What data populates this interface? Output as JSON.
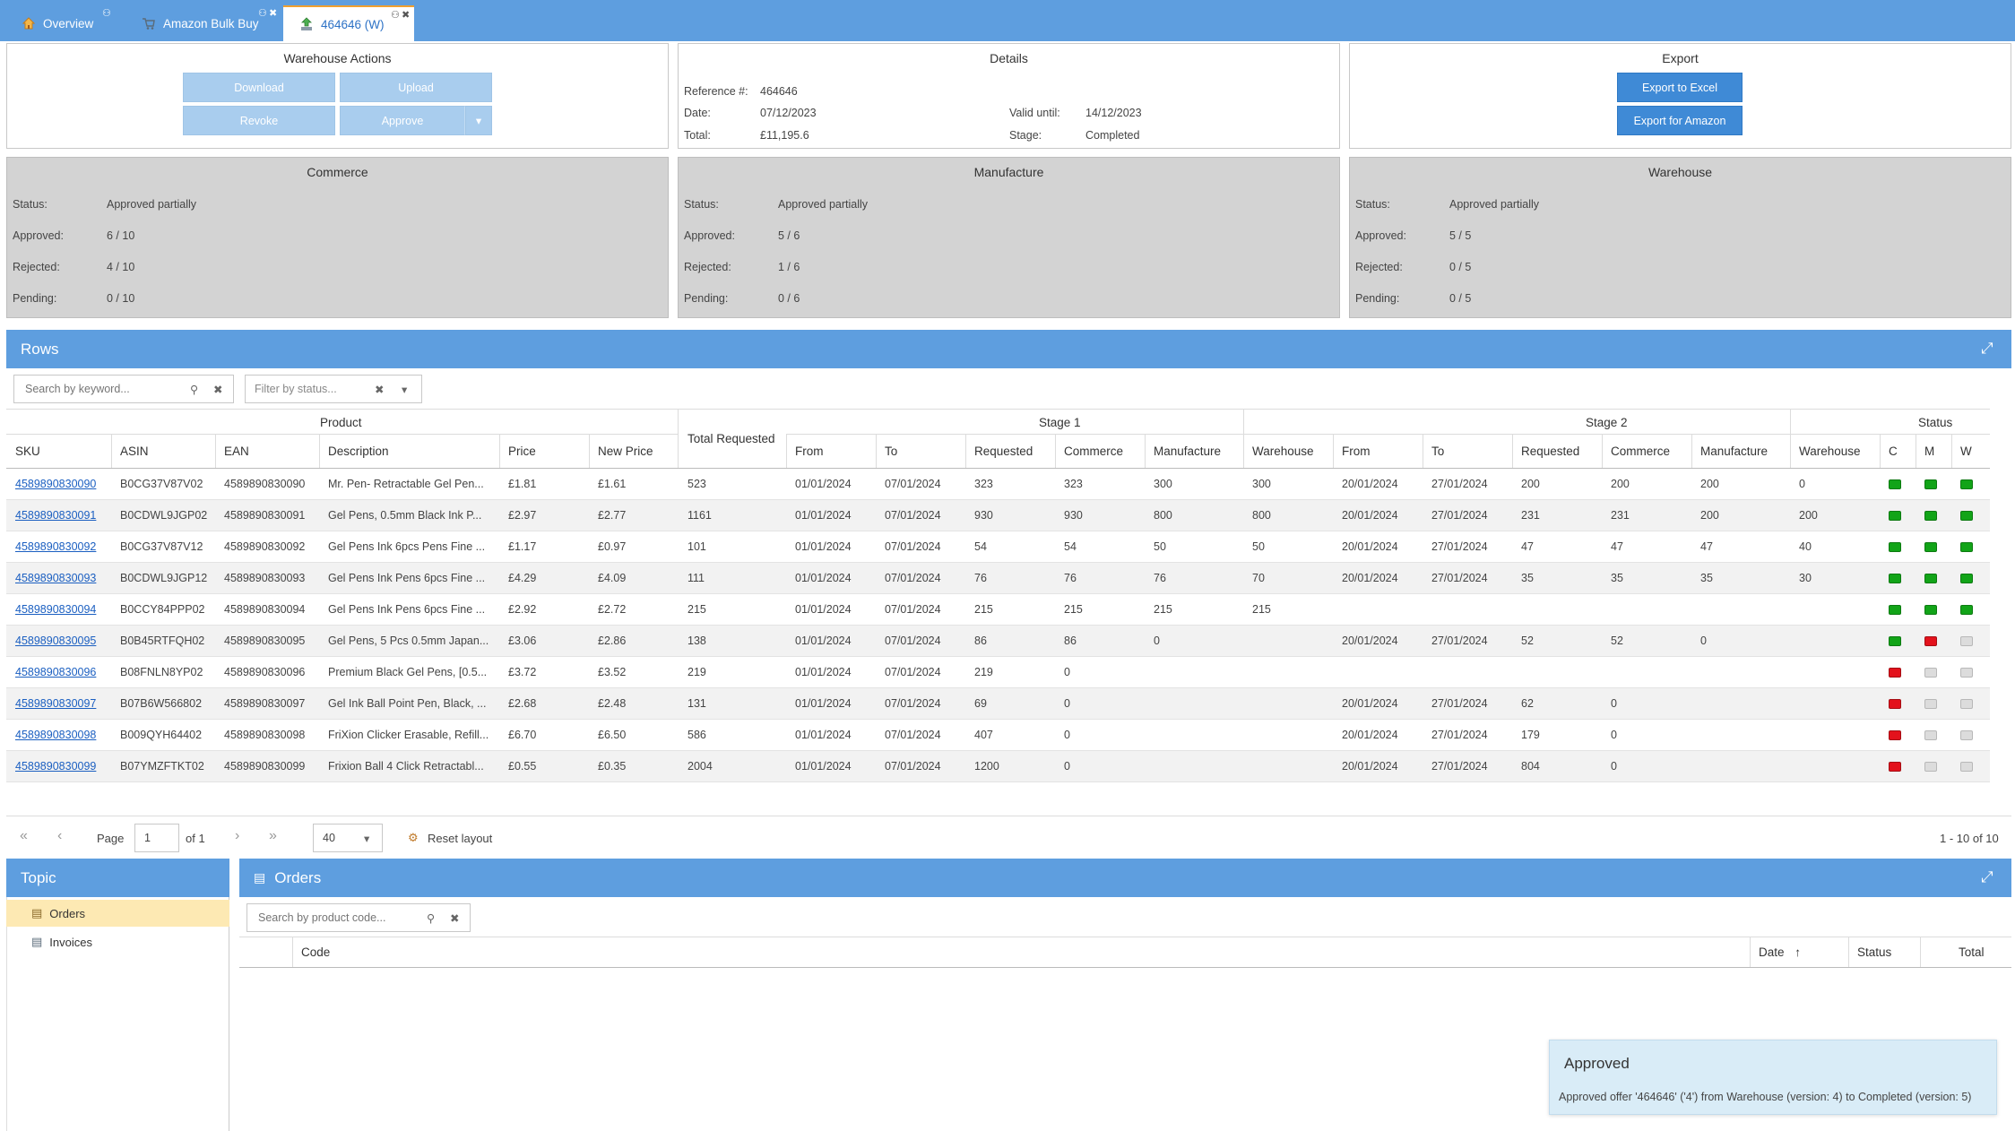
{
  "tabs": [
    {
      "label": "Overview",
      "icon": "home-icon"
    },
    {
      "label": "Amazon Bulk Buy",
      "icon": "cart-icon"
    },
    {
      "label": "464646 (W)",
      "icon": "upload-icon"
    }
  ],
  "warehouse_actions": {
    "title": "Warehouse Actions",
    "download": "Download",
    "upload": "Upload",
    "revoke": "Revoke",
    "approve": "Approve"
  },
  "details": {
    "title": "Details",
    "reference_label": "Reference #:",
    "reference": "464646",
    "date_label": "Date:",
    "date": "07/12/2023",
    "total_label": "Total:",
    "total": "£11,195.6",
    "valid_label": "Valid until:",
    "valid": "14/12/2023",
    "stage_label": "Stage:",
    "stage": "Completed"
  },
  "export": {
    "title": "Export",
    "excel": "Export to Excel",
    "amazon": "Export for Amazon"
  },
  "summaries": [
    {
      "title": "Commerce",
      "status": "Approved partially",
      "approved": "6 / 10",
      "rejected": "4 / 10",
      "pending": "0 / 10"
    },
    {
      "title": "Manufacture",
      "status": "Approved partially",
      "approved": "5 / 6",
      "rejected": "1 / 6",
      "pending": "0 / 6"
    },
    {
      "title": "Warehouse",
      "status": "Approved partially",
      "approved": "5 / 5",
      "rejected": "0 / 5",
      "pending": "0 / 5"
    }
  ],
  "summary_labels": {
    "status": "Status:",
    "approved": "Approved:",
    "rejected": "Rejected:",
    "pending": "Pending:"
  },
  "rows_section": {
    "title": "Rows",
    "search_placeholder": "Search by keyword...",
    "filter_placeholder": "Filter by status..."
  },
  "grid": {
    "group_headers": {
      "product": "Product",
      "total_requested": "Total Requested",
      "stage1": "Stage 1",
      "stage2": "Stage 2",
      "status": "Status"
    },
    "columns": [
      "SKU",
      "ASIN",
      "EAN",
      "Description",
      "Price",
      "New Price",
      "From",
      "To",
      "Requested",
      "Commerce",
      "Manufacture",
      "Warehouse",
      "From",
      "To",
      "Requested",
      "Commerce",
      "Manufacture",
      "Warehouse",
      "C",
      "M",
      "W"
    ],
    "rows": [
      {
        "sku": "4589890830090",
        "asin": "B0CG37V87V02",
        "ean": "4589890830090",
        "desc": "Mr. Pen- Retractable Gel Pen...",
        "price": "£1.81",
        "new_price": "£1.61",
        "total": "523",
        "s1_from": "01/01/2024",
        "s1_to": "07/01/2024",
        "s1_req": "323",
        "s1_com": "323",
        "s1_man": "300",
        "s1_wh": "300",
        "s2_from": "20/01/2024",
        "s2_to": "27/01/2024",
        "s2_req": "200",
        "s2_com": "200",
        "s2_man": "200",
        "s2_wh": "0",
        "c": "green",
        "m": "green",
        "w": "green"
      },
      {
        "sku": "4589890830091",
        "asin": "B0CDWL9JGP02",
        "ean": "4589890830091",
        "desc": "Gel Pens, 0.5mm Black Ink P...",
        "price": "£2.97",
        "new_price": "£2.77",
        "total": "1161",
        "s1_from": "01/01/2024",
        "s1_to": "07/01/2024",
        "s1_req": "930",
        "s1_com": "930",
        "s1_man": "800",
        "s1_wh": "800",
        "s2_from": "20/01/2024",
        "s2_to": "27/01/2024",
        "s2_req": "231",
        "s2_com": "231",
        "s2_man": "200",
        "s2_wh": "200",
        "c": "green",
        "m": "green",
        "w": "green"
      },
      {
        "sku": "4589890830092",
        "asin": "B0CG37V87V12",
        "ean": "4589890830092",
        "desc": "Gel Pens Ink 6pcs Pens Fine ...",
        "price": "£1.17",
        "new_price": "£0.97",
        "total": "101",
        "s1_from": "01/01/2024",
        "s1_to": "07/01/2024",
        "s1_req": "54",
        "s1_com": "54",
        "s1_man": "50",
        "s1_wh": "50",
        "s2_from": "20/01/2024",
        "s2_to": "27/01/2024",
        "s2_req": "47",
        "s2_com": "47",
        "s2_man": "47",
        "s2_wh": "40",
        "c": "green",
        "m": "green",
        "w": "green"
      },
      {
        "sku": "4589890830093",
        "asin": "B0CDWL9JGP12",
        "ean": "4589890830093",
        "desc": "Gel Pens Ink Pens 6pcs Fine ...",
        "price": "£4.29",
        "new_price": "£4.09",
        "total": "111",
        "s1_from": "01/01/2024",
        "s1_to": "07/01/2024",
        "s1_req": "76",
        "s1_com": "76",
        "s1_man": "76",
        "s1_wh": "70",
        "s2_from": "20/01/2024",
        "s2_to": "27/01/2024",
        "s2_req": "35",
        "s2_com": "35",
        "s2_man": "35",
        "s2_wh": "30",
        "c": "green",
        "m": "green",
        "w": "green"
      },
      {
        "sku": "4589890830094",
        "asin": "B0CCY84PPP02",
        "ean": "4589890830094",
        "desc": "Gel Pens Ink Pens 6pcs Fine ...",
        "price": "£2.92",
        "new_price": "£2.72",
        "total": "215",
        "s1_from": "01/01/2024",
        "s1_to": "07/01/2024",
        "s1_req": "215",
        "s1_com": "215",
        "s1_man": "215",
        "s1_wh": "215",
        "s2_from": "",
        "s2_to": "",
        "s2_req": "",
        "s2_com": "",
        "s2_man": "",
        "s2_wh": "",
        "c": "green",
        "m": "green",
        "w": "green"
      },
      {
        "sku": "4589890830095",
        "asin": "B0B45RTFQH02",
        "ean": "4589890830095",
        "desc": "Gel Pens, 5 Pcs 0.5mm Japan...",
        "price": "£3.06",
        "new_price": "£2.86",
        "total": "138",
        "s1_from": "01/01/2024",
        "s1_to": "07/01/2024",
        "s1_req": "86",
        "s1_com": "86",
        "s1_man": "0",
        "s1_wh": "",
        "s2_from": "20/01/2024",
        "s2_to": "27/01/2024",
        "s2_req": "52",
        "s2_com": "52",
        "s2_man": "0",
        "s2_wh": "",
        "c": "green",
        "m": "red",
        "w": "grey"
      },
      {
        "sku": "4589890830096",
        "asin": "B08FNLN8YP02",
        "ean": "4589890830096",
        "desc": "Premium Black Gel Pens, [0.5...",
        "price": "£3.72",
        "new_price": "£3.52",
        "total": "219",
        "s1_from": "01/01/2024",
        "s1_to": "07/01/2024",
        "s1_req": "219",
        "s1_com": "0",
        "s1_man": "",
        "s1_wh": "",
        "s2_from": "",
        "s2_to": "",
        "s2_req": "",
        "s2_com": "",
        "s2_man": "",
        "s2_wh": "",
        "c": "red",
        "m": "grey",
        "w": "grey"
      },
      {
        "sku": "4589890830097",
        "asin": "B07B6W566802",
        "ean": "4589890830097",
        "desc": "Gel Ink Ball Point Pen, Black, ...",
        "price": "£2.68",
        "new_price": "£2.48",
        "total": "131",
        "s1_from": "01/01/2024",
        "s1_to": "07/01/2024",
        "s1_req": "69",
        "s1_com": "0",
        "s1_man": "",
        "s1_wh": "",
        "s2_from": "20/01/2024",
        "s2_to": "27/01/2024",
        "s2_req": "62",
        "s2_com": "0",
        "s2_man": "",
        "s2_wh": "",
        "c": "red",
        "m": "grey",
        "w": "grey"
      },
      {
        "sku": "4589890830098",
        "asin": "B009QYH64402",
        "ean": "4589890830098",
        "desc": "FriXion Clicker Erasable, Refill...",
        "price": "£6.70",
        "new_price": "£6.50",
        "total": "586",
        "s1_from": "01/01/2024",
        "s1_to": "07/01/2024",
        "s1_req": "407",
        "s1_com": "0",
        "s1_man": "",
        "s1_wh": "",
        "s2_from": "20/01/2024",
        "s2_to": "27/01/2024",
        "s2_req": "179",
        "s2_com": "0",
        "s2_man": "",
        "s2_wh": "",
        "c": "red",
        "m": "grey",
        "w": "grey"
      },
      {
        "sku": "4589890830099",
        "asin": "B07YMZFTKT02",
        "ean": "4589890830099",
        "desc": "Frixion Ball 4 Click Retractabl...",
        "price": "£0.55",
        "new_price": "£0.35",
        "total": "2004",
        "s1_from": "01/01/2024",
        "s1_to": "07/01/2024",
        "s1_req": "1200",
        "s1_com": "0",
        "s1_man": "",
        "s1_wh": "",
        "s2_from": "20/01/2024",
        "s2_to": "27/01/2024",
        "s2_req": "804",
        "s2_com": "0",
        "s2_man": "",
        "s2_wh": "",
        "c": "red",
        "m": "grey",
        "w": "grey"
      }
    ]
  },
  "pager": {
    "page_label": "Page",
    "page": "1",
    "of_label": "of 1",
    "page_size": "40",
    "reset_label": "Reset layout",
    "range": "1 - 10 of 10"
  },
  "topic": {
    "title": "Topic",
    "items": [
      {
        "label": "Orders",
        "icon": "cart-icon"
      },
      {
        "label": "Invoices",
        "icon": "document-icon"
      }
    ]
  },
  "orders": {
    "title": "Orders",
    "search_placeholder": "Search by product code...",
    "columns": [
      "Code",
      "Date",
      "Status",
      "Total"
    ]
  },
  "toast": {
    "title": "Approved",
    "message": "Approved offer '464646' ('4') from Warehouse (version: 4) to Completed (version: 5)"
  }
}
